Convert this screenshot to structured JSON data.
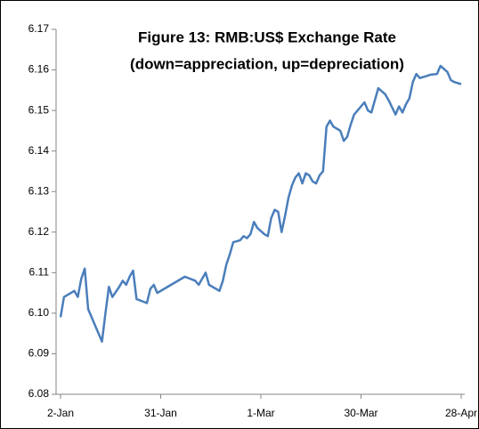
{
  "chart_data": {
    "type": "line",
    "title": "Figure 13: RMB:US$ Exchange Rate",
    "subtitle": "(down=appreciation, up=depreciation)",
    "x": [
      2,
      3,
      6,
      7,
      8,
      9,
      10,
      14,
      15,
      16,
      17,
      19,
      20,
      21,
      22,
      23,
      24,
      27,
      28,
      29,
      30,
      38,
      41,
      42,
      44,
      45,
      48,
      49,
      50,
      51,
      52,
      54,
      55,
      56,
      57,
      58,
      59,
      61,
      62,
      63,
      64,
      65,
      66,
      67,
      68,
      69,
      70,
      71,
      72,
      73,
      74,
      75,
      76,
      77,
      78,
      79,
      80,
      81,
      83,
      84,
      85,
      86,
      87,
      89,
      90,
      91,
      92,
      94,
      96,
      97,
      99,
      100,
      101,
      102,
      103,
      104,
      105,
      106,
      108,
      109,
      111,
      112,
      114,
      115,
      116,
      118
    ],
    "series": [
      {
        "name": "RMB:US$",
        "color": "#4a7ebb",
        "values": [
          6.099,
          6.104,
          6.1055,
          6.104,
          6.1085,
          6.111,
          6.101,
          6.093,
          6.1,
          6.1065,
          6.104,
          6.1065,
          6.108,
          6.107,
          6.109,
          6.1105,
          6.1035,
          6.1025,
          6.106,
          6.107,
          6.105,
          6.109,
          6.108,
          6.107,
          6.11,
          6.107,
          6.1055,
          6.108,
          6.112,
          6.1145,
          6.1175,
          6.118,
          6.119,
          6.1185,
          6.1195,
          6.1225,
          6.121,
          6.1195,
          6.119,
          6.1235,
          6.1255,
          6.125,
          6.12,
          6.124,
          6.1285,
          6.1315,
          6.1335,
          6.1345,
          6.132,
          6.1345,
          6.134,
          6.1325,
          6.132,
          6.134,
          6.135,
          6.146,
          6.1475,
          6.146,
          6.145,
          6.1425,
          6.1435,
          6.1465,
          6.149,
          6.151,
          6.152,
          6.15,
          6.1495,
          6.1555,
          6.154,
          6.1525,
          6.149,
          6.151,
          6.1495,
          6.1515,
          6.153,
          6.157,
          6.159,
          6.158,
          6.1585,
          6.1588,
          6.159,
          6.161,
          6.1595,
          6.1575,
          6.157,
          6.1565
        ]
      }
    ],
    "xlim": [
      2,
      118
    ],
    "xticks": [
      {
        "value": 2,
        "label": "2-Jan"
      },
      {
        "value": 31,
        "label": "31-Jan"
      },
      {
        "value": 60,
        "label": "1-Mar"
      },
      {
        "value": 89,
        "label": "30-Mar"
      },
      {
        "value": 118,
        "label": "28-Apr"
      }
    ],
    "ylim": [
      6.08,
      6.17
    ],
    "yticks": [
      6.08,
      6.09,
      {
        "value": 6.1,
        "label": "6.10"
      },
      6.11,
      6.12,
      6.13,
      6.14,
      6.15,
      6.16,
      6.17
    ],
    "grid": false
  }
}
